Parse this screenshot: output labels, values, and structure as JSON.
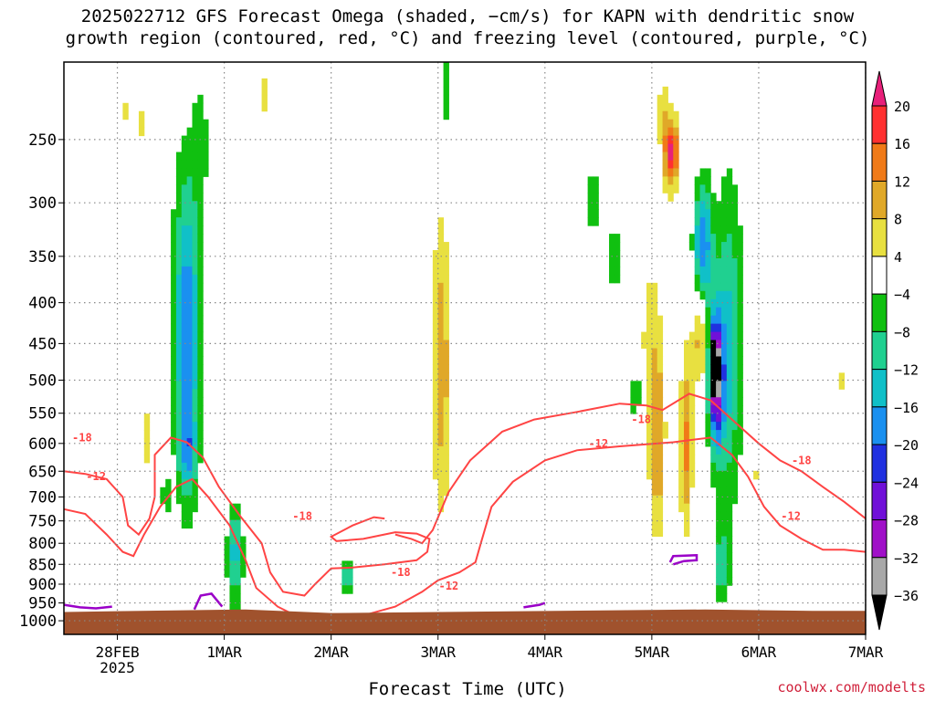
{
  "title_line1": "2025022712 GFS Forecast Omega (shaded, −cm/s) for KAPN with dendritic snow",
  "title_line2": "growth region (contoured, red, °C) and freezing level (contoured, purple, °C)",
  "credit": "coolwx.com/modelts",
  "colors": {
    "ground": "#a0522d",
    "isotherm": "#ff4444",
    "freezing": "#9a00c8",
    "grid": "#888888"
  },
  "chart_data": {
    "type": "heatmap",
    "xlabel": "Forecast Time (UTC)",
    "ylabel": "",
    "x_ticks": [
      "28FEB",
      "1MAR",
      "2MAR",
      "3MAR",
      "4MAR",
      "5MAR",
      "6MAR",
      "7MAR"
    ],
    "x_sublabel": "2025",
    "x_range_days": [
      -0.5,
      7.0
    ],
    "y_ticks": [
      250,
      300,
      350,
      400,
      450,
      500,
      550,
      600,
      650,
      700,
      750,
      800,
      850,
      900,
      950,
      1000
    ],
    "y_range_hPa": [
      200,
      1040
    ],
    "y_scale": "log-pressure",
    "colorbar": {
      "label_values": [
        "20",
        "16",
        "12",
        "8",
        "4",
        "−4",
        "−8",
        "−12",
        "−16",
        "−20",
        "−24",
        "−28",
        "−32",
        "−36"
      ],
      "levels": [
        {
          "lo": 20,
          "hi": null,
          "color": "#e8207a"
        },
        {
          "lo": 16,
          "hi": 20,
          "color": "#ff3030"
        },
        {
          "lo": 12,
          "hi": 16,
          "color": "#f07a18"
        },
        {
          "lo": 8,
          "hi": 12,
          "color": "#e0a828"
        },
        {
          "lo": 4,
          "hi": 8,
          "color": "#e8e040"
        },
        {
          "lo": -4,
          "hi": 4,
          "color": "#ffffff"
        },
        {
          "lo": -8,
          "hi": -4,
          "color": "#10c010"
        },
        {
          "lo": -12,
          "hi": -8,
          "color": "#20d090"
        },
        {
          "lo": -16,
          "hi": -12,
          "color": "#10c0c8"
        },
        {
          "lo": -20,
          "hi": -16,
          "color": "#1a90f0"
        },
        {
          "lo": -24,
          "hi": -20,
          "color": "#2030e0"
        },
        {
          "lo": -28,
          "hi": -24,
          "color": "#7010d8"
        },
        {
          "lo": -32,
          "hi": -28,
          "color": "#a010c8"
        },
        {
          "lo": -36,
          "hi": -32,
          "color": "#a8a8a8"
        },
        {
          "lo": null,
          "hi": -36,
          "color": "#000000"
        }
      ]
    },
    "isotherm_labels": [
      {
        "text": "-18",
        "day": -0.33,
        "p": 590
      },
      {
        "text": "-12",
        "day": -0.2,
        "p": 660
      },
      {
        "text": "-18",
        "day": 1.73,
        "p": 740
      },
      {
        "text": "-18",
        "day": 2.65,
        "p": 870
      },
      {
        "text": "-12",
        "day": 3.1,
        "p": 905
      },
      {
        "text": "-18",
        "day": 4.9,
        "p": 560
      },
      {
        "text": "-12",
        "day": 4.5,
        "p": 600
      },
      {
        "text": "-18",
        "day": 6.4,
        "p": 630
      },
      {
        "text": "-12",
        "day": 6.3,
        "p": 740
      }
    ]
  }
}
